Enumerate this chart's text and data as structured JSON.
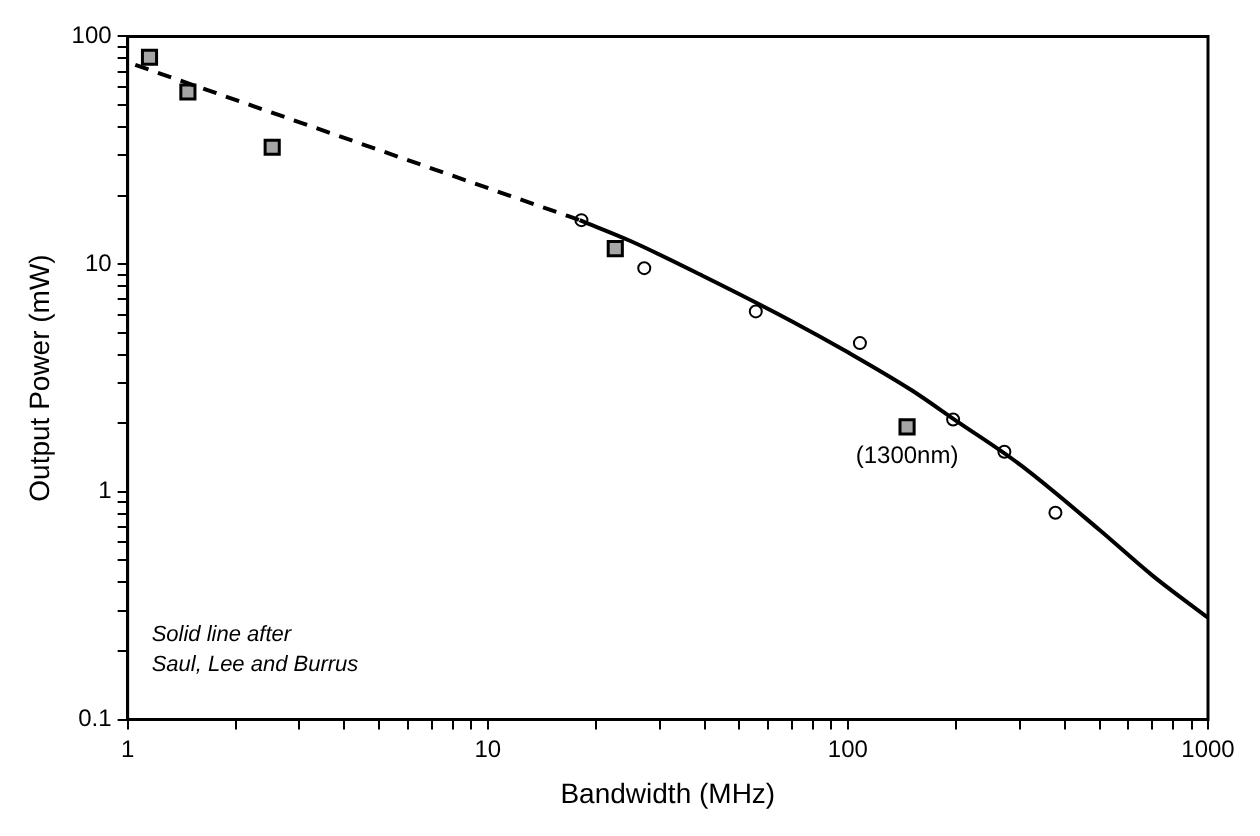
{
  "chart_data": {
    "type": "scatter",
    "xlabel": "Bandwidth (MHz)",
    "ylabel": "Output Power (mW)",
    "log": "xy",
    "grid": false,
    "legend": false,
    "xlim": [
      1,
      1000
    ],
    "ylim": [
      0.1,
      100
    ],
    "xticks": [
      1,
      {
        "value": 2,
        "label": null
      },
      {
        "value": 3,
        "label": null
      },
      {
        "value": 4,
        "label": null
      },
      {
        "value": 5,
        "label": null
      },
      {
        "value": 6,
        "label": null
      },
      {
        "value": 7,
        "label": null
      },
      {
        "value": 8,
        "label": null
      },
      {
        "value": 9,
        "label": null
      },
      10,
      {
        "value": 20,
        "label": null
      },
      {
        "value": 30,
        "label": null
      },
      {
        "value": 40,
        "label": null
      },
      {
        "value": 50,
        "label": null
      },
      {
        "value": 60,
        "label": null
      },
      {
        "value": 70,
        "label": null
      },
      {
        "value": 80,
        "label": null
      },
      {
        "value": 90,
        "label": null
      },
      100,
      {
        "value": 200,
        "label": null
      },
      {
        "value": 300,
        "label": null
      },
      {
        "value": 400,
        "label": null
      },
      {
        "value": 500,
        "label": null
      },
      {
        "value": 600,
        "label": null
      },
      {
        "value": 700,
        "label": null
      },
      {
        "value": 800,
        "label": null
      },
      {
        "value": 900,
        "label": null
      },
      1000
    ],
    "yticks": [
      0.1,
      {
        "value": 0.2,
        "label": null
      },
      {
        "value": 0.3,
        "label": null
      },
      {
        "value": 0.4,
        "label": null
      },
      {
        "value": 0.5,
        "label": null
      },
      {
        "value": 0.6,
        "label": null
      },
      {
        "value": 0.7,
        "label": null
      },
      {
        "value": 0.8,
        "label": null
      },
      {
        "value": 0.9,
        "label": null
      },
      1,
      {
        "value": 2,
        "label": null
      },
      {
        "value": 3,
        "label": null
      },
      {
        "value": 4,
        "label": null
      },
      {
        "value": 5,
        "label": null
      },
      {
        "value": 6,
        "label": null
      },
      {
        "value": 7,
        "label": null
      },
      {
        "value": 8,
        "label": null
      },
      {
        "value": 9,
        "label": null
      },
      10,
      {
        "value": 20,
        "label": null
      },
      {
        "value": 30,
        "label": null
      },
      {
        "value": 40,
        "label": null
      },
      {
        "value": 50,
        "label": null
      },
      {
        "value": 60,
        "label": null
      },
      {
        "value": 70,
        "label": null
      },
      {
        "value": 80,
        "label": null
      },
      {
        "value": 90,
        "label": null
      },
      100
    ],
    "series": [
      {
        "type": "line",
        "line_style": "dashed",
        "marker": "none",
        "color": "#000000",
        "x": [
          1.05,
          18
        ],
        "values": [
          75,
          15.6
        ]
      },
      {
        "type": "line",
        "line_style": "solid",
        "marker": "none",
        "color": "#000000",
        "x": [
          18,
          25,
          40,
          70,
          100,
          150,
          200,
          300,
          500,
          700,
          1000
        ],
        "values": [
          15.6,
          12.6,
          8.8,
          5.6,
          4.1,
          2.8,
          2.05,
          1.32,
          0.68,
          0.43,
          0.28
        ]
      },
      {
        "type": "scatter",
        "marker": "square",
        "color": "#a6a6a6",
        "x": [
          1.15,
          1.47,
          2.52,
          22.6,
          146
        ],
        "values": [
          81,
          57,
          32.6,
          11.7,
          1.93
        ]
      },
      {
        "type": "scatter",
        "marker": "circle",
        "color": "#000000",
        "x": [
          18.2,
          27.2,
          55.5,
          108,
          196,
          272,
          377
        ],
        "values": [
          15.6,
          9.6,
          6.2,
          4.5,
          2.08,
          1.5,
          0.81
        ]
      }
    ],
    "annotations": [
      {
        "text": "(1300nm)",
        "x": 146,
        "y": 1.93
      },
      "Solid line after\nSaul, Lee and Burrus"
    ]
  }
}
